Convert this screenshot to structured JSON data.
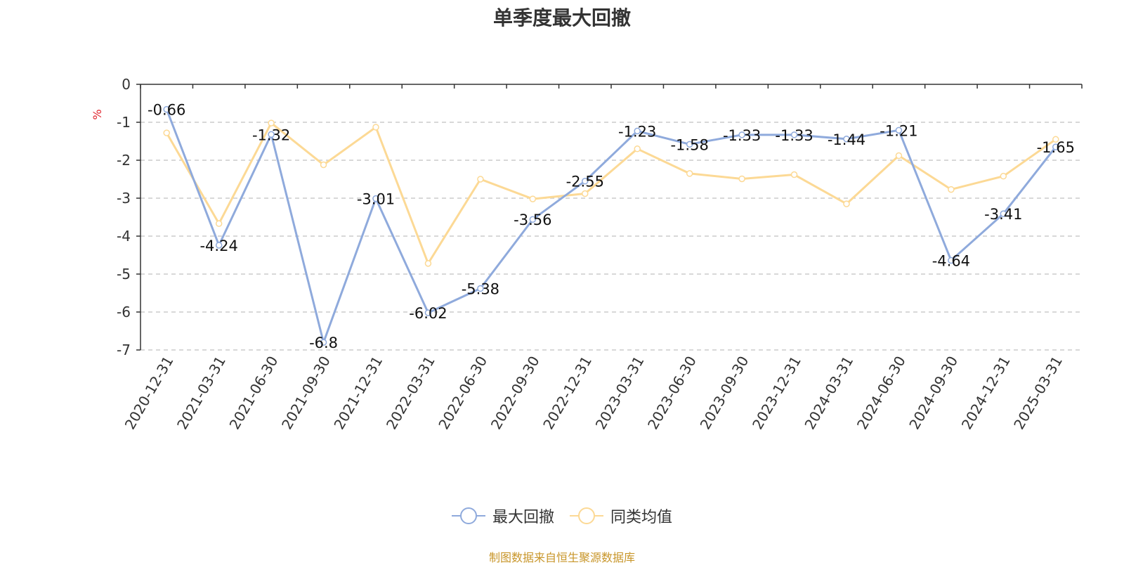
{
  "title": "单季度最大回撤",
  "source_note": "制图数据来自恒生聚源数据库",
  "colors": {
    "series1": "#8faadc",
    "series2": "#fcd995",
    "unit": "#e0242c"
  },
  "chart_data": {
    "type": "line",
    "title": "单季度最大回撤",
    "ylabel": "%",
    "ylim": [
      -7,
      0
    ],
    "yticks": [
      0,
      -1,
      -2,
      -3,
      -4,
      -5,
      -6,
      -7
    ],
    "grid": true,
    "legend_position": "bottom",
    "x": [
      "2020-12-31",
      "2021-03-31",
      "2021-06-30",
      "2021-09-30",
      "2021-12-31",
      "2022-03-31",
      "2022-06-30",
      "2022-09-30",
      "2022-12-31",
      "2023-03-31",
      "2023-06-30",
      "2023-09-30",
      "2023-12-31",
      "2024-03-31",
      "2024-06-30",
      "2024-09-30",
      "2024-12-31",
      "2025-03-31"
    ],
    "series": [
      {
        "name": "最大回撤",
        "values": [
          -0.66,
          -4.24,
          -1.32,
          -6.8,
          -3.01,
          -6.02,
          -5.38,
          -3.56,
          -2.55,
          -1.23,
          -1.58,
          -1.33,
          -1.33,
          -1.44,
          -1.21,
          -4.64,
          -3.41,
          -1.65
        ],
        "labels": true
      },
      {
        "name": "同类均值",
        "values": [
          -1.28,
          -3.67,
          -1.02,
          -2.12,
          -1.13,
          -4.72,
          -2.5,
          -3.02,
          -2.88,
          -1.7,
          -2.35,
          -2.49,
          -2.38,
          -3.15,
          -1.88,
          -2.77,
          -2.42,
          -1.45
        ],
        "labels": false
      }
    ]
  }
}
